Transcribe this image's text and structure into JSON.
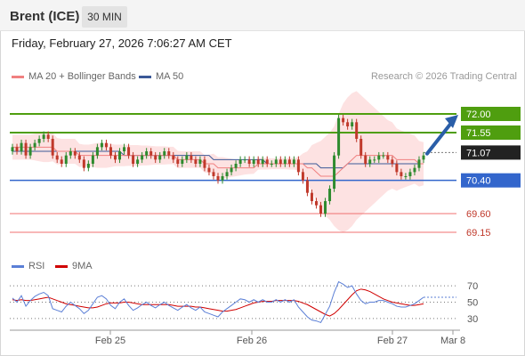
{
  "header": {
    "title": "Brent (ICE)",
    "timeframe": "30 MIN"
  },
  "date_line": "Friday, February 27, 2026 7:06:27 AM CET",
  "legend": {
    "ma20": "MA 20 + Bollinger Bands",
    "ma50": "MA 50",
    "copyright": "Research © 2026 Trading Central"
  },
  "colors": {
    "bull": "#2e8b2e",
    "bear": "#c0392b",
    "resistance": "#4f9e0f",
    "support": "#3366cc",
    "weak": "#f07070",
    "ma20": "#f08080",
    "ma50": "#3b5998",
    "band": "#fde2e2",
    "rsi": "#5b7fd6",
    "rsi_ma": "#d00000",
    "arrow": "#2a5ea8"
  },
  "chart_data": [
    {
      "type": "candlestick",
      "y_range": [
        68.85,
        72.6
      ],
      "levels": [
        {
          "value": 72.0,
          "label": "72.00",
          "kind": "resistance"
        },
        {
          "value": 71.55,
          "label": "71.55",
          "kind": "resistance"
        },
        {
          "value": 71.07,
          "label": "71.07",
          "kind": "last"
        },
        {
          "value": 70.4,
          "label": "70.40",
          "kind": "support"
        },
        {
          "value": 69.6,
          "label": "69.60",
          "kind": "weak"
        },
        {
          "value": 69.15,
          "label": "69.15",
          "kind": "weak"
        }
      ],
      "x_labels": [
        "Feb 25",
        "Feb 26",
        "Feb 27",
        "Mar 8"
      ],
      "close": [
        71.2,
        71.1,
        71.3,
        71.0,
        71.2,
        71.3,
        71.4,
        71.5,
        71.4,
        71.0,
        70.9,
        70.8,
        71.0,
        71.1,
        71.0,
        70.9,
        70.7,
        70.8,
        71.0,
        71.2,
        71.3,
        71.2,
        71.0,
        70.9,
        71.1,
        71.2,
        71.0,
        70.8,
        70.9,
        71.0,
        71.1,
        71.0,
        70.9,
        71.0,
        71.1,
        71.0,
        70.9,
        70.8,
        70.9,
        71.0,
        70.9,
        70.8,
        70.9,
        70.7,
        70.6,
        70.5,
        70.4,
        70.5,
        70.6,
        70.7,
        70.8,
        70.9,
        70.9,
        70.8,
        70.9,
        70.8,
        70.9,
        70.8,
        70.8,
        70.9,
        70.8,
        70.9,
        70.8,
        70.9,
        70.6,
        70.4,
        70.1,
        69.9,
        69.8,
        69.6,
        69.9,
        70.2,
        71.0,
        71.9,
        71.8,
        71.7,
        71.8,
        71.4,
        71.0,
        70.8,
        70.9,
        70.9,
        71.0,
        71.0,
        70.9,
        70.8,
        70.6,
        70.5,
        70.5,
        70.6,
        70.7,
        70.9,
        71.0
      ],
      "open": [
        71.1,
        71.2,
        71.1,
        71.3,
        71.0,
        71.2,
        71.3,
        71.4,
        71.5,
        71.4,
        71.0,
        70.9,
        70.8,
        71.0,
        71.1,
        71.0,
        70.9,
        70.7,
        70.8,
        71.0,
        71.2,
        71.3,
        71.2,
        71.0,
        70.9,
        71.1,
        71.2,
        71.0,
        70.8,
        70.9,
        71.0,
        71.1,
        71.0,
        70.9,
        71.0,
        71.1,
        71.0,
        70.9,
        70.8,
        70.9,
        71.0,
        70.9,
        70.8,
        70.9,
        70.7,
        70.6,
        70.5,
        70.4,
        70.5,
        70.6,
        70.7,
        70.8,
        70.9,
        70.9,
        70.8,
        70.9,
        70.8,
        70.9,
        70.8,
        70.8,
        70.9,
        70.8,
        70.9,
        70.8,
        70.9,
        70.6,
        70.4,
        70.1,
        69.9,
        69.8,
        69.6,
        69.9,
        70.2,
        71.0,
        71.9,
        71.8,
        71.7,
        71.8,
        71.4,
        71.0,
        70.8,
        70.9,
        70.9,
        71.0,
        71.0,
        70.9,
        70.8,
        70.6,
        70.5,
        70.5,
        70.6,
        70.7,
        70.9
      ],
      "ma20": [
        71.2,
        71.2,
        71.2,
        71.2,
        71.2,
        71.2,
        71.2,
        71.2,
        71.2,
        71.2,
        71.1,
        71.1,
        71.1,
        71.1,
        71.1,
        71.0,
        71.0,
        71.0,
        71.0,
        71.0,
        71.0,
        71.0,
        71.0,
        71.0,
        71.0,
        71.0,
        71.0,
        71.0,
        71.0,
        71.0,
        71.0,
        71.0,
        71.0,
        71.0,
        71.0,
        71.0,
        71.0,
        70.9,
        70.9,
        70.9,
        70.9,
        70.9,
        70.9,
        70.8,
        70.8,
        70.8,
        70.7,
        70.7,
        70.7,
        70.7,
        70.7,
        70.7,
        70.7,
        70.7,
        70.7,
        70.8,
        70.8,
        70.8,
        70.8,
        70.8,
        70.8,
        70.8,
        70.8,
        70.8,
        70.8,
        70.8,
        70.7,
        70.7,
        70.6,
        70.5,
        70.5,
        70.5,
        70.5,
        70.6,
        70.7,
        70.8,
        70.9,
        71.0,
        71.0,
        71.0,
        71.0,
        71.0,
        71.0,
        71.0,
        71.0,
        71.0,
        70.9,
        70.9,
        70.9,
        70.9,
        70.9,
        70.8,
        70.8
      ],
      "ma50": [
        71.1,
        71.1,
        71.1,
        71.1,
        71.1,
        71.1,
        71.1,
        71.1,
        71.1,
        71.1,
        71.1,
        71.1,
        71.1,
        71.1,
        71.1,
        71.1,
        71.1,
        71.1,
        71.1,
        71.1,
        71.1,
        71.1,
        71.1,
        71.1,
        71.1,
        71.0,
        71.0,
        71.0,
        71.0,
        71.0,
        71.0,
        71.0,
        71.0,
        71.0,
        71.0,
        71.0,
        71.0,
        71.0,
        71.0,
        71.0,
        71.0,
        71.0,
        71.0,
        71.0,
        71.0,
        70.9,
        70.9,
        70.9,
        70.9,
        70.9,
        70.9,
        70.9,
        70.9,
        70.9,
        70.9,
        70.9,
        70.9,
        70.8,
        70.8,
        70.8,
        70.8,
        70.8,
        70.8,
        70.8,
        70.8,
        70.8,
        70.8,
        70.8,
        70.8,
        70.7,
        70.7,
        70.7,
        70.7,
        70.7,
        70.7,
        70.8,
        70.8,
        70.8,
        70.8,
        70.8,
        70.8,
        70.8,
        70.8,
        70.8,
        70.8,
        70.8,
        70.8,
        70.8,
        70.8,
        70.8,
        70.8,
        70.8,
        70.8
      ],
      "band_width": [
        0.3,
        0.3,
        0.3,
        0.3,
        0.3,
        0.32,
        0.34,
        0.36,
        0.36,
        0.34,
        0.32,
        0.3,
        0.3,
        0.3,
        0.3,
        0.28,
        0.26,
        0.26,
        0.28,
        0.3,
        0.3,
        0.3,
        0.28,
        0.26,
        0.26,
        0.26,
        0.25,
        0.25,
        0.25,
        0.24,
        0.24,
        0.23,
        0.22,
        0.22,
        0.22,
        0.21,
        0.21,
        0.21,
        0.2,
        0.2,
        0.2,
        0.2,
        0.2,
        0.21,
        0.22,
        0.24,
        0.26,
        0.26,
        0.24,
        0.22,
        0.2,
        0.18,
        0.16,
        0.15,
        0.14,
        0.14,
        0.14,
        0.14,
        0.13,
        0.13,
        0.13,
        0.13,
        0.14,
        0.14,
        0.16,
        0.25,
        0.4,
        0.55,
        0.7,
        0.85,
        0.95,
        1.05,
        1.2,
        1.4,
        1.55,
        1.6,
        1.6,
        1.55,
        1.45,
        1.35,
        1.25,
        1.15,
        1.05,
        0.95,
        0.85,
        0.8,
        0.75,
        0.7,
        0.66,
        0.62,
        0.58,
        0.55,
        0.52
      ]
    },
    {
      "type": "line",
      "series": [
        {
          "name": "RSI"
        },
        {
          "name": "9MA"
        }
      ],
      "y_ticks": [
        30,
        50,
        70
      ],
      "rsi": [
        55,
        50,
        58,
        45,
        52,
        57,
        60,
        62,
        58,
        42,
        40,
        38,
        45,
        50,
        46,
        42,
        36,
        40,
        48,
        56,
        58,
        54,
        46,
        42,
        50,
        54,
        46,
        40,
        43,
        47,
        50,
        46,
        43,
        47,
        50,
        46,
        43,
        40,
        44,
        47,
        43,
        40,
        44,
        38,
        36,
        34,
        32,
        38,
        42,
        46,
        50,
        54,
        53,
        50,
        53,
        50,
        53,
        50,
        50,
        53,
        50,
        53,
        50,
        53,
        44,
        38,
        32,
        28,
        27,
        25,
        35,
        45,
        62,
        75,
        72,
        68,
        70,
        60,
        52,
        48,
        50,
        50,
        52,
        52,
        50,
        48,
        45,
        44,
        44,
        46,
        48,
        52,
        56
      ],
      "rsi_ma": [
        53,
        52,
        53,
        52,
        52,
        53,
        54,
        55,
        56,
        54,
        52,
        50,
        48,
        47,
        46,
        45,
        44,
        43,
        43,
        44,
        46,
        48,
        49,
        49,
        49,
        50,
        50,
        49,
        48,
        47,
        47,
        47,
        47,
        47,
        47,
        47,
        46,
        45,
        45,
        45,
        45,
        44,
        44,
        43,
        42,
        41,
        40,
        39,
        39,
        40,
        41,
        43,
        45,
        47,
        49,
        50,
        51,
        51,
        51,
        52,
        52,
        52,
        52,
        52,
        51,
        49,
        47,
        44,
        41,
        38,
        35,
        33,
        36,
        41,
        47,
        53,
        59,
        64,
        66,
        65,
        63,
        60,
        57,
        54,
        52,
        50,
        49,
        48,
        47,
        46,
        46,
        47,
        48
      ]
    }
  ]
}
